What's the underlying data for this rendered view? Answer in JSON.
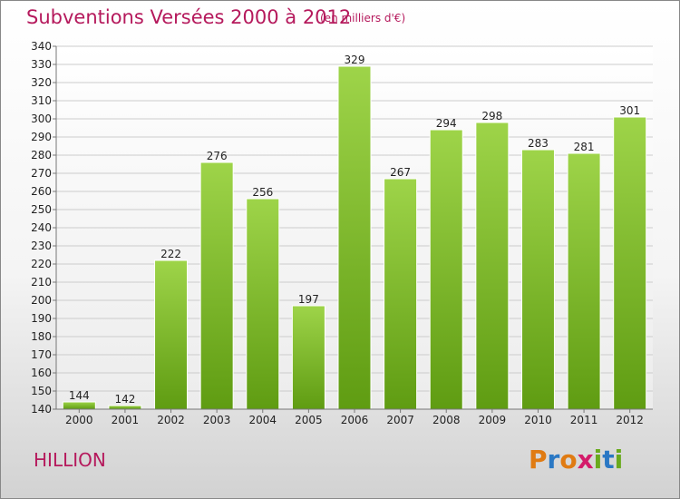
{
  "header": {
    "title": "Subventions Versées 2000 à 2012",
    "subtitle": "(en milliers d'€)"
  },
  "footer": {
    "place": "HILLION",
    "logo_text": "Proxiti"
  },
  "colors": {
    "title": "#b5195c",
    "bar_top": "#9ed449",
    "bar_bottom": "#5f9c12",
    "grid": "#cccccc"
  },
  "chart_data": {
    "type": "bar",
    "title": "Subventions Versées 2000 à 2012",
    "subtitle": "(en milliers d'€)",
    "xlabel": "",
    "ylabel": "",
    "categories": [
      "2000",
      "2001",
      "2002",
      "2003",
      "2004",
      "2005",
      "2006",
      "2007",
      "2008",
      "2009",
      "2010",
      "2011",
      "2012"
    ],
    "values": [
      144,
      142,
      222,
      276,
      256,
      197,
      329,
      267,
      294,
      298,
      283,
      281,
      301
    ],
    "ylim": [
      140,
      340
    ],
    "ytick_step": 10,
    "grid": true,
    "legend": "none"
  }
}
